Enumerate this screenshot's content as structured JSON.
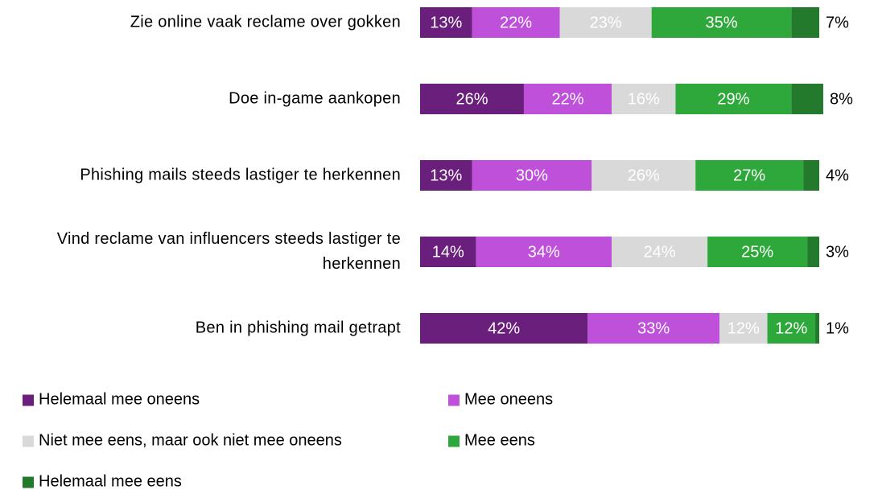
{
  "chart_data": {
    "type": "stacked-bar-horizontal",
    "categories": [
      "Zie online vaak reclame over gokken",
      "Doe in-game aankopen",
      "Phishing mails steeds lastiger te herkennen",
      "Vind reclame van influencers steeds lastiger te herkennen",
      "Ben in phishing mail getrapt"
    ],
    "xlim": [
      0,
      100
    ],
    "series": [
      {
        "name": "Helemaal mee oneens",
        "color": "#6b1f7c",
        "values": [
          13,
          26,
          13,
          14,
          42
        ],
        "value_labels": [
          "13%",
          "26%",
          "13%",
          "14%",
          "42%"
        ]
      },
      {
        "name": "Mee oneens",
        "color": "#bf50da",
        "values": [
          22,
          22,
          30,
          34,
          33
        ],
        "value_labels": [
          "22%",
          "22%",
          "30%",
          "34%",
          "33%"
        ]
      },
      {
        "name": "Niet mee eens, maar ook niet mee oneens",
        "color": "#d9d9d9",
        "values": [
          23,
          16,
          26,
          24,
          12
        ],
        "value_labels": [
          "23%",
          "16%",
          "26%",
          "24%",
          "12%"
        ]
      },
      {
        "name": "Mee eens",
        "color": "#2fa83b",
        "values": [
          35,
          29,
          27,
          25,
          12
        ],
        "value_labels": [
          "35%",
          "29%",
          "27%",
          "25%",
          "12%"
        ]
      },
      {
        "name": "Helemaal mee eens",
        "color": "#237a2c",
        "values": [
          7,
          8,
          4,
          3,
          1
        ],
        "value_labels": [
          "7%",
          "8%",
          "4%",
          "3%",
          "1%"
        ]
      }
    ],
    "legend": "bottom"
  }
}
